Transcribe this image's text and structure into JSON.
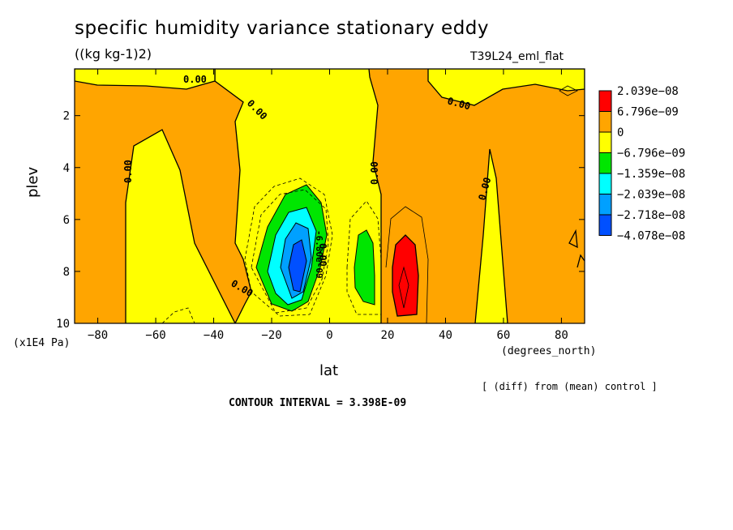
{
  "chart_data": {
    "type": "heatmap",
    "title": "specific humidity variance stationary eddy",
    "units": "((kg kg-1)2)",
    "run_label": "T39L24_eml_flat",
    "xlabel": "lat",
    "x_unit": "(degrees_north)",
    "ylabel": "plev",
    "y_unit": "(x1E4 Pa)",
    "xlim": [
      -88,
      88
    ],
    "ylim": [
      10,
      0.2
    ],
    "x_ticks": [
      -80,
      -60,
      -40,
      -20,
      0,
      20,
      40,
      60,
      80
    ],
    "x_tick_labels": [
      "−80",
      "−60",
      "−40",
      "−20",
      "0",
      "20",
      "40",
      "60",
      "80"
    ],
    "y_ticks": [
      2,
      4,
      6,
      8,
      10
    ],
    "y_tick_labels": [
      "2",
      "4",
      "6",
      "8",
      "10"
    ],
    "contour_interval_text": "CONTOUR INTERVAL = 3.398E-09",
    "note": "[ (diff) from (mean) control ]",
    "contour_labels": [
      "0.00",
      "0.00",
      "0.00",
      "0.00",
      "0.00",
      "0.00",
      "0.00",
      "0.00",
      "-6.80e-09"
    ],
    "legend": {
      "labels": [
        "2.039e−08",
        "6.796e−09",
        "0",
        "−6.796e−09",
        "−1.359e−08",
        "−2.039e−08",
        "−2.718e−08",
        "−4.078e−08"
      ],
      "colors": [
        "#ff0000",
        "#ffa500",
        "#ffff00",
        "#00e600",
        "#00ffff",
        "#00a0ff",
        "#0050ff"
      ]
    },
    "colors": {
      "positive_strong": "#ff0000",
      "positive": "#ffa500",
      "near_zero": "#ffff00",
      "negative": "#00e600",
      "negative_strong": "#00ffff",
      "negative_stronger": "#00a0ff",
      "negative_strongest": "#0050ff"
    }
  }
}
